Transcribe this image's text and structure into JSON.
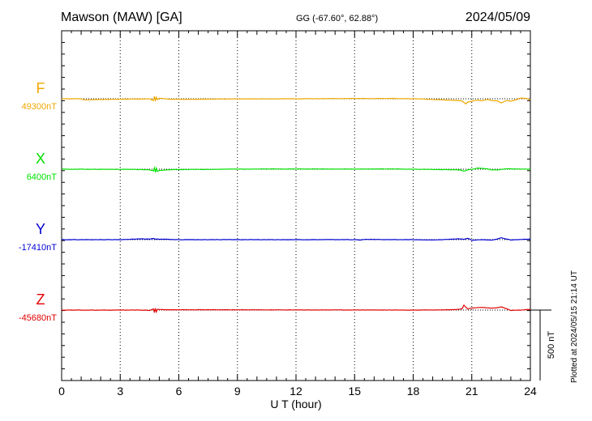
{
  "header": {
    "station": "Mawson (MAW)  [GA]",
    "coords": "GG (-67.60°,  62.88°)",
    "date": "2024/05/09"
  },
  "footer_note": "Plotted at 2024/05/15 21:14 UT",
  "colors": {
    "F": "#f0a800",
    "X": "#00e000",
    "Y": "#0000d0",
    "Z": "#e00000"
  },
  "chart_data": {
    "type": "line",
    "xlabel": "U T (hour)",
    "xlim": [
      0,
      24
    ],
    "x_ticks": [
      "0",
      "3",
      "6",
      "9",
      "12",
      "15",
      "18",
      "21",
      "24"
    ],
    "scale_bar_label": "500 nT",
    "scale_bar_nT": 500,
    "series": [
      {
        "name": "F",
        "baseline_label": "49300nT",
        "baseline_nT": 49300,
        "points": [
          [
            0,
            0
          ],
          [
            1,
            0
          ],
          [
            1.2,
            -8
          ],
          [
            2,
            -5
          ],
          [
            3,
            -3
          ],
          [
            4,
            -2
          ],
          [
            4.5,
            0
          ],
          [
            4.7,
            -14
          ],
          [
            4.75,
            18
          ],
          [
            4.8,
            -12
          ],
          [
            4.85,
            10
          ],
          [
            4.9,
            -6
          ],
          [
            5,
            4
          ],
          [
            5.5,
            -3
          ],
          [
            6,
            -4
          ],
          [
            7,
            -3
          ],
          [
            9,
            -1
          ],
          [
            12,
            0
          ],
          [
            15,
            2
          ],
          [
            17,
            2
          ],
          [
            18,
            0
          ],
          [
            19,
            -5
          ],
          [
            20,
            -10
          ],
          [
            20.5,
            -15
          ],
          [
            20.7,
            -36
          ],
          [
            20.8,
            -22
          ],
          [
            21,
            -18
          ],
          [
            21.3,
            -8
          ],
          [
            21.5,
            -14
          ],
          [
            21.8,
            -6
          ],
          [
            22,
            -12
          ],
          [
            22.3,
            -14
          ],
          [
            22.5,
            -30
          ],
          [
            22.8,
            -12
          ],
          [
            23,
            -16
          ],
          [
            23.3,
            -6
          ],
          [
            23.5,
            5
          ],
          [
            23.8,
            2
          ],
          [
            24,
            -10
          ]
        ]
      },
      {
        "name": "X",
        "baseline_label": "6400nT",
        "baseline_nT": 6400,
        "points": [
          [
            0,
            0
          ],
          [
            1,
            0
          ],
          [
            2,
            -1
          ],
          [
            3,
            -1
          ],
          [
            4,
            -2
          ],
          [
            4.5,
            -4
          ],
          [
            4.7,
            -12
          ],
          [
            4.75,
            10
          ],
          [
            4.8,
            -22
          ],
          [
            4.85,
            8
          ],
          [
            4.9,
            -15
          ],
          [
            5,
            -8
          ],
          [
            5.5,
            -4
          ],
          [
            6,
            -2
          ],
          [
            7,
            -2
          ],
          [
            9,
            1
          ],
          [
            12,
            2
          ],
          [
            15,
            1
          ],
          [
            17,
            2
          ],
          [
            18,
            0
          ],
          [
            19,
            -2
          ],
          [
            20,
            -3
          ],
          [
            20.4,
            -6
          ],
          [
            20.6,
            -14
          ],
          [
            20.8,
            -4
          ],
          [
            21,
            -2
          ],
          [
            21.3,
            8
          ],
          [
            21.5,
            6
          ],
          [
            21.8,
            2
          ],
          [
            22,
            -4
          ],
          [
            22.3,
            -6
          ],
          [
            22.5,
            -2
          ],
          [
            22.8,
            4
          ],
          [
            23,
            2
          ],
          [
            24,
            0
          ]
        ]
      },
      {
        "name": "Y",
        "baseline_label": "-17410nT",
        "baseline_nT": -17410,
        "points": [
          [
            0,
            0
          ],
          [
            1,
            0
          ],
          [
            2,
            0
          ],
          [
            3,
            0
          ],
          [
            3.5,
            2
          ],
          [
            4,
            6
          ],
          [
            4.5,
            4
          ],
          [
            4.7,
            8
          ],
          [
            4.8,
            3
          ],
          [
            4.9,
            5
          ],
          [
            5,
            3
          ],
          [
            5.5,
            2
          ],
          [
            6,
            0
          ],
          [
            9,
            0
          ],
          [
            12,
            0
          ],
          [
            15,
            0
          ],
          [
            15.3,
            -3
          ],
          [
            15.5,
            2
          ],
          [
            17,
            0
          ],
          [
            18,
            0
          ],
          [
            19,
            -3
          ],
          [
            19.5,
            0
          ],
          [
            20,
            4
          ],
          [
            20.3,
            6
          ],
          [
            20.6,
            2
          ],
          [
            20.8,
            10
          ],
          [
            21,
            -4
          ],
          [
            21.3,
            -2
          ],
          [
            21.5,
            0
          ],
          [
            22,
            -3
          ],
          [
            22.3,
            5
          ],
          [
            22.5,
            13
          ],
          [
            22.8,
            4
          ],
          [
            23,
            -2
          ],
          [
            23.5,
            2
          ],
          [
            24,
            4
          ]
        ]
      },
      {
        "name": "Z",
        "baseline_label": "-45680nT",
        "baseline_nT": -45680,
        "points": [
          [
            0,
            0
          ],
          [
            1,
            0
          ],
          [
            2,
            -1
          ],
          [
            3,
            0
          ],
          [
            4,
            0
          ],
          [
            4.5,
            -2
          ],
          [
            4.7,
            8
          ],
          [
            4.75,
            -18
          ],
          [
            4.8,
            12
          ],
          [
            4.85,
            -14
          ],
          [
            4.9,
            6
          ],
          [
            5,
            4
          ],
          [
            6,
            2
          ],
          [
            9,
            2
          ],
          [
            12,
            1
          ],
          [
            15,
            1
          ],
          [
            18,
            0
          ],
          [
            19,
            1
          ],
          [
            20,
            3
          ],
          [
            20.3,
            6
          ],
          [
            20.5,
            10
          ],
          [
            20.6,
            34
          ],
          [
            20.8,
            8
          ],
          [
            21,
            14
          ],
          [
            21.3,
            18
          ],
          [
            21.5,
            20
          ],
          [
            21.8,
            16
          ],
          [
            22,
            14
          ],
          [
            22.3,
            16
          ],
          [
            22.5,
            22
          ],
          [
            22.8,
            10
          ],
          [
            23,
            -2
          ],
          [
            23.5,
            0
          ],
          [
            24,
            6
          ]
        ]
      }
    ]
  }
}
